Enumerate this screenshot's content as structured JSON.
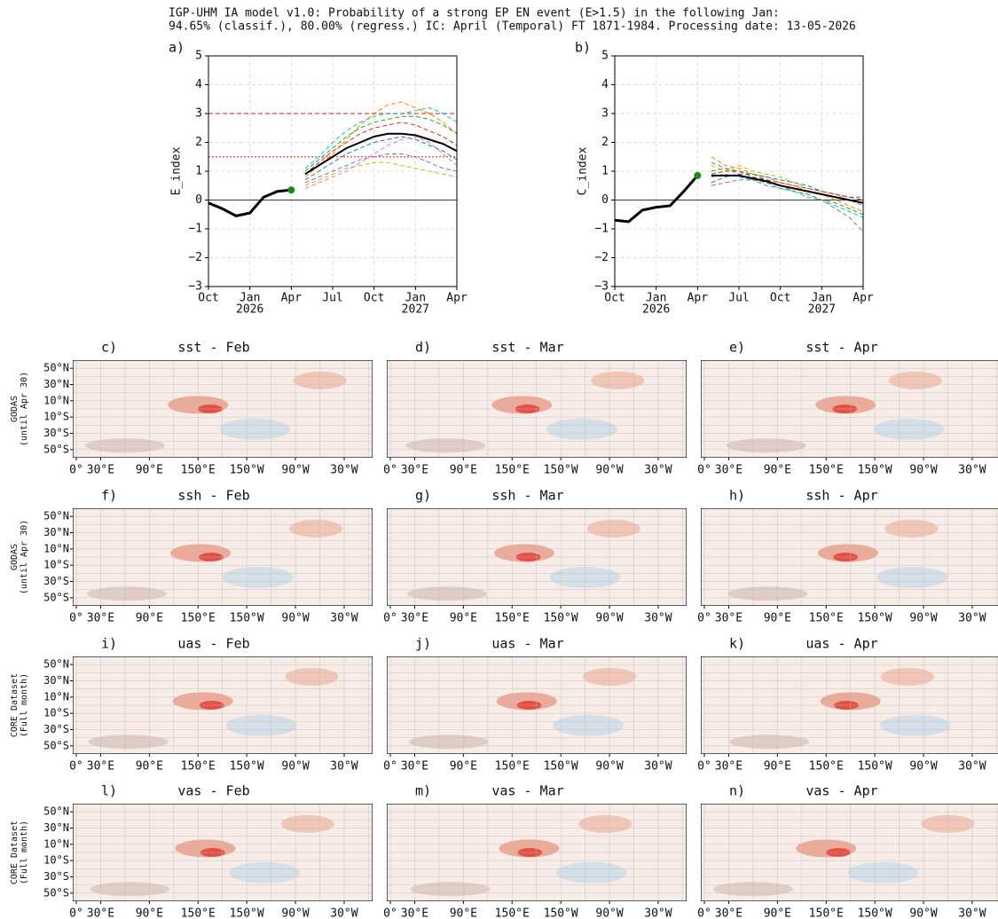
{
  "title": "IGP-UHM IA model v1.0: Probability of a strong EP EN event (E>1.5) in the following Jan:",
  "subtitle": "94.65% (classif.), 80.00% (regress.) IC: April (Temporal) FT 1871-1984. Processing date: 13-05-2026",
  "chart_data": [
    {
      "type": "line",
      "panel": "a)",
      "ylabel": "E_index",
      "categories": [
        "Oct",
        null,
        null,
        "Jan",
        null,
        null,
        "Apr",
        null,
        null,
        "Jul",
        null,
        null,
        "Oct",
        null,
        null,
        "Jan",
        null,
        null,
        "Apr"
      ],
      "x_sublabels": [
        null,
        null,
        null,
        "2026",
        null,
        null,
        null,
        null,
        null,
        null,
        null,
        null,
        null,
        null,
        null,
        "2027",
        null,
        null,
        null
      ],
      "ylim": [
        -3,
        5
      ],
      "yticks": [
        {
          "value": -3,
          "label": "−3"
        },
        {
          "value": -2,
          "label": "−2"
        },
        {
          "value": -1,
          "label": "−1"
        },
        0,
        1,
        2,
        3,
        4,
        5
      ],
      "grid": true,
      "zero_line": true,
      "hlines": [
        {
          "value": 3,
          "color": "#e06666",
          "style": "dashed"
        },
        {
          "value": 1.5,
          "color": "#e06666",
          "style": "dotted"
        }
      ],
      "series": [
        {
          "color": "#ff7f0e",
          "style": "dashed",
          "values": [
            null,
            null,
            null,
            null,
            null,
            null,
            null,
            0.8,
            1.2,
            1.6,
            2.1,
            2.6,
            3.0,
            3.3,
            3.4,
            3.2,
            3.0,
            2.7,
            2.3
          ]
        },
        {
          "color": "#1f77b4",
          "style": "dashed",
          "values": [
            null,
            null,
            null,
            null,
            null,
            null,
            null,
            0.7,
            1.0,
            1.3,
            1.6,
            1.8,
            2.0,
            2.1,
            2.2,
            2.1,
            1.9,
            1.7,
            1.4
          ]
        },
        {
          "color": "#2ca02c",
          "style": "dashed",
          "values": [
            null,
            null,
            null,
            null,
            null,
            null,
            null,
            1.0,
            1.4,
            1.8,
            2.2,
            2.5,
            2.7,
            2.8,
            2.9,
            2.9,
            2.8,
            2.6,
            2.3
          ]
        },
        {
          "color": "#9467bd",
          "style": "dashed",
          "values": [
            null,
            null,
            null,
            null,
            null,
            null,
            null,
            0.6,
            0.8,
            1.0,
            1.2,
            1.4,
            1.5,
            1.6,
            1.6,
            1.5,
            1.3,
            1.1,
            1.0
          ]
        },
        {
          "color": "#bcbd22",
          "style": "dashed",
          "values": [
            null,
            null,
            null,
            null,
            null,
            null,
            null,
            0.5,
            0.7,
            0.9,
            1.1,
            1.2,
            1.3,
            1.3,
            1.2,
            1.1,
            1.0,
            0.9,
            0.8
          ]
        },
        {
          "color": "#17becf",
          "style": "dashed",
          "values": [
            null,
            null,
            null,
            null,
            null,
            null,
            null,
            1.1,
            1.5,
            2.0,
            2.4,
            2.7,
            2.9,
            3.0,
            3.0,
            3.1,
            3.2,
            3.0,
            2.7
          ]
        },
        {
          "color": "#d62728",
          "style": "dashed",
          "values": [
            null,
            null,
            null,
            null,
            null,
            null,
            null,
            0.9,
            1.3,
            1.7,
            2.0,
            2.3,
            2.5,
            2.6,
            2.7,
            2.6,
            2.4,
            2.2,
            1.9
          ]
        },
        {
          "color": "#e377c2",
          "style": "dashed",
          "values": [
            null,
            null,
            null,
            null,
            null,
            null,
            null,
            0.4,
            0.6,
            0.8,
            1.0,
            1.3,
            1.6,
            1.9,
            2.1,
            2.2,
            2.0,
            1.6,
            1.2
          ]
        },
        {
          "color": "#000000",
          "style": "solid",
          "width": 2,
          "values": [
            null,
            null,
            null,
            null,
            null,
            null,
            null,
            0.9,
            1.2,
            1.5,
            1.8,
            2.0,
            2.2,
            2.3,
            2.3,
            2.25,
            2.1,
            1.95,
            1.7
          ]
        },
        {
          "color": "#000000",
          "style": "solid",
          "width": 3,
          "marker_last": "#1a8a1a",
          "values": [
            -0.1,
            -0.3,
            -0.55,
            -0.45,
            0.1,
            0.3,
            0.35,
            null,
            null,
            null,
            null,
            null,
            null,
            null,
            null,
            null,
            null,
            null,
            null
          ]
        }
      ]
    },
    {
      "type": "line",
      "panel": "b)",
      "ylabel": "C_index",
      "categories": [
        "Oct",
        null,
        null,
        "Jan",
        null,
        null,
        "Apr",
        null,
        null,
        "Jul",
        null,
        null,
        "Oct",
        null,
        null,
        "Jan",
        null,
        null,
        "Apr"
      ],
      "x_sublabels": [
        null,
        null,
        null,
        "2026",
        null,
        null,
        null,
        null,
        null,
        null,
        null,
        null,
        null,
        null,
        null,
        "2027",
        null,
        null,
        null
      ],
      "ylim": [
        -3,
        5
      ],
      "yticks": [
        {
          "value": -3,
          "label": "−3"
        },
        {
          "value": -2,
          "label": "−2"
        },
        {
          "value": -1,
          "label": "−1"
        },
        0,
        1,
        2,
        3,
        4,
        5
      ],
      "grid": true,
      "zero_line": true,
      "series": [
        {
          "color": "#ff7f0e",
          "style": "dashed",
          "values": [
            null,
            null,
            null,
            null,
            null,
            null,
            null,
            1.5,
            1.2,
            1.1,
            0.9,
            0.8,
            0.6,
            0.5,
            0.3,
            0.2,
            0.0,
            -0.2,
            -0.4
          ]
        },
        {
          "color": "#1f77b4",
          "style": "dashed",
          "values": [
            null,
            null,
            null,
            null,
            null,
            null,
            null,
            0.6,
            0.8,
            0.9,
            0.9,
            0.8,
            0.7,
            0.6,
            0.5,
            0.3,
            0.2,
            0.1,
            0.1
          ]
        },
        {
          "color": "#2ca02c",
          "style": "dashed",
          "values": [
            null,
            null,
            null,
            null,
            null,
            null,
            null,
            1.0,
            1.1,
            1.0,
            0.9,
            0.7,
            0.5,
            0.3,
            0.2,
            0.0,
            -0.1,
            -0.3,
            -0.5
          ]
        },
        {
          "color": "#9467bd",
          "style": "dashed",
          "values": [
            null,
            null,
            null,
            null,
            null,
            null,
            null,
            0.5,
            0.6,
            0.7,
            0.7,
            0.6,
            0.5,
            0.4,
            0.3,
            0.2,
            0.1,
            0.0,
            -0.2
          ]
        },
        {
          "color": "#bcbd22",
          "style": "dashed",
          "values": [
            null,
            null,
            null,
            null,
            null,
            null,
            null,
            1.2,
            1.0,
            1.2,
            1.0,
            0.9,
            0.8,
            0.6,
            0.4,
            0.3,
            0.2,
            0.0,
            -0.1
          ]
        },
        {
          "color": "#17becf",
          "style": "dashed",
          "values": [
            null,
            null,
            null,
            null,
            null,
            null,
            null,
            0.8,
            0.9,
            0.8,
            0.7,
            0.6,
            0.4,
            0.3,
            0.1,
            0.0,
            -0.2,
            -0.4,
            -0.6
          ]
        },
        {
          "color": "#d62728",
          "style": "dashed",
          "values": [
            null,
            null,
            null,
            null,
            null,
            null,
            null,
            0.9,
            1.0,
            1.0,
            0.8,
            0.7,
            0.6,
            0.5,
            0.4,
            0.3,
            0.2,
            0.1,
            0.0
          ]
        },
        {
          "color": "#7f7f7f",
          "style": "dashed",
          "values": [
            null,
            null,
            null,
            null,
            null,
            null,
            null,
            1.3,
            1.1,
            0.9,
            0.7,
            0.5,
            0.4,
            0.3,
            0.2,
            0.0,
            -0.3,
            -0.6,
            -1.1
          ]
        },
        {
          "color": "#000000",
          "style": "solid",
          "width": 2,
          "values": [
            null,
            null,
            null,
            null,
            null,
            null,
            null,
            0.85,
            0.85,
            0.85,
            0.75,
            0.65,
            0.5,
            0.4,
            0.3,
            0.2,
            0.1,
            0.0,
            -0.1
          ]
        },
        {
          "color": "#000000",
          "style": "solid",
          "width": 3,
          "marker_last": "#1a8a1a",
          "values": [
            -0.7,
            -0.75,
            -0.35,
            -0.25,
            -0.2,
            0.3,
            0.85,
            null,
            null,
            null,
            null,
            null,
            null,
            null,
            null,
            null,
            null,
            null,
            null
          ]
        }
      ]
    }
  ],
  "maps": {
    "row_labels": [
      [
        "GODAS",
        "(until Apr 30)"
      ],
      [
        "GODAS",
        "(until Apr 30)"
      ],
      [
        "CORE Dataset",
        "(Full month)"
      ],
      [
        "CORE Dataset",
        "(Full month)"
      ]
    ],
    "panels": [
      {
        "label": "c)",
        "title": "sst - Feb"
      },
      {
        "label": "d)",
        "title": "sst - Mar"
      },
      {
        "label": "e)",
        "title": "sst - Apr"
      },
      {
        "label": "f)",
        "title": "ssh - Feb"
      },
      {
        "label": "g)",
        "title": "ssh - Mar"
      },
      {
        "label": "h)",
        "title": "ssh - Apr"
      },
      {
        "label": "i)",
        "title": "uas - Feb"
      },
      {
        "label": "j)",
        "title": "uas - Mar"
      },
      {
        "label": "k)",
        "title": "uas - Apr"
      },
      {
        "label": "l)",
        "title": "vas - Feb"
      },
      {
        "label": "m)",
        "title": "vas - Mar"
      },
      {
        "label": "n)",
        "title": "vas - Apr"
      }
    ],
    "lat_ticks": [
      {
        "value": 50,
        "label": "50°N"
      },
      {
        "value": 30,
        "label": "30°N"
      },
      {
        "value": 10,
        "label": "10°N"
      },
      {
        "value": -10,
        "label": "10°S"
      },
      {
        "value": -30,
        "label": "30°S"
      },
      {
        "value": -50,
        "label": "50°S"
      }
    ],
    "lon_ticks": [
      {
        "value": 0,
        "label": "0°"
      },
      {
        "value": 30,
        "label": "30°E"
      },
      {
        "value": 90,
        "label": "90°E"
      },
      {
        "value": 150,
        "label": "150°E"
      },
      {
        "value": 210,
        "label": "150°W"
      },
      {
        "value": 270,
        "label": "90°W"
      },
      {
        "value": 330,
        "label": "30°W"
      }
    ]
  }
}
